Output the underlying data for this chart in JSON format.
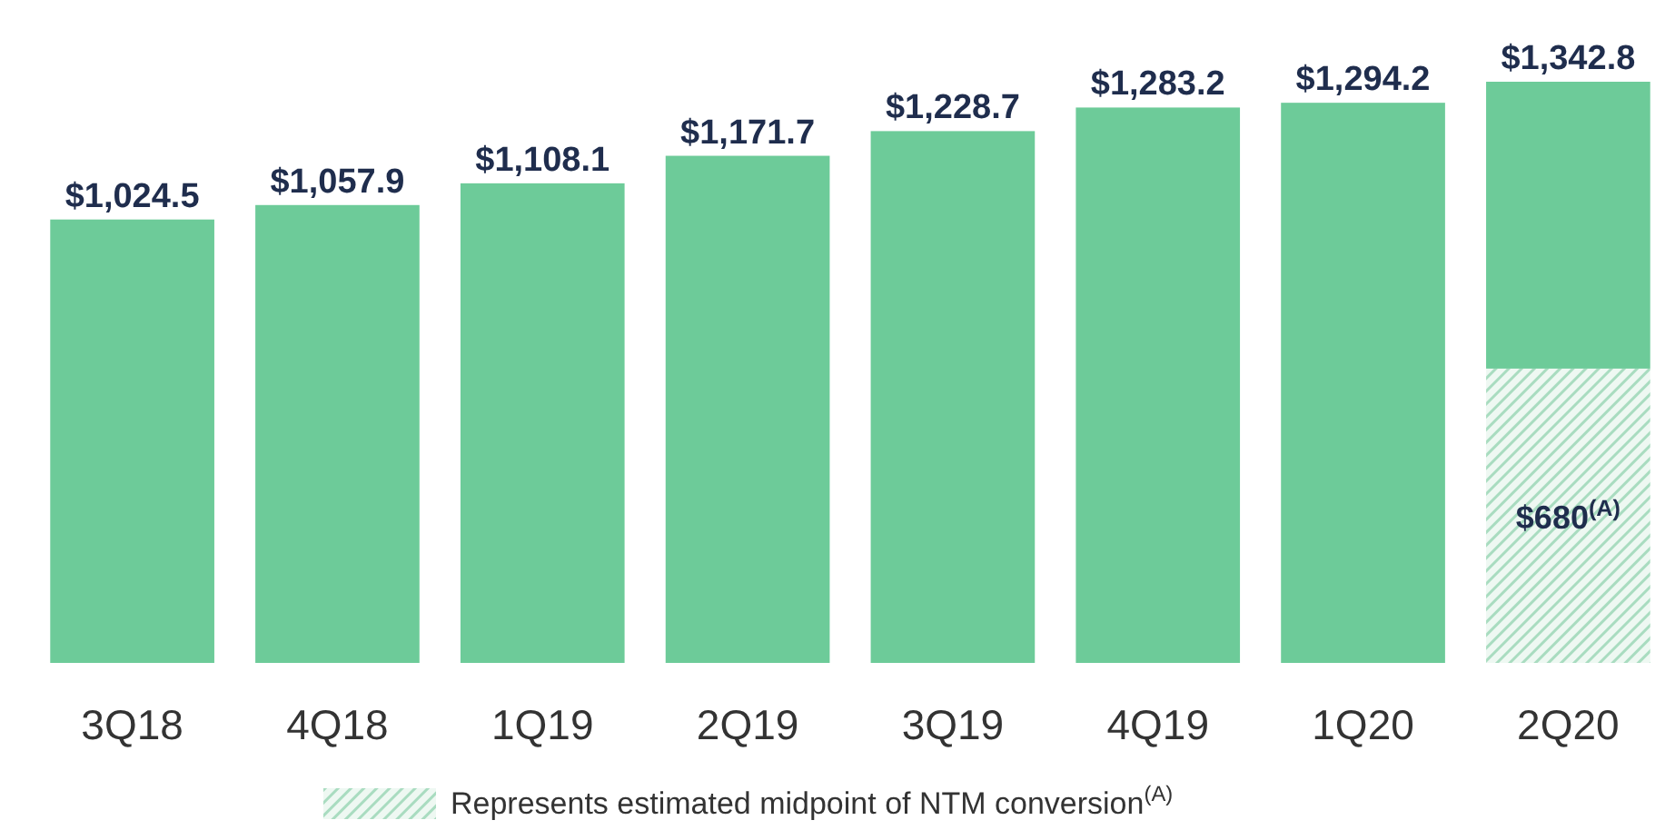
{
  "chart_data": {
    "type": "bar",
    "stacked": true,
    "categories": [
      "3Q18",
      "4Q18",
      "1Q19",
      "2Q19",
      "3Q19",
      "4Q19",
      "1Q20",
      "2Q20"
    ],
    "series": [
      {
        "name": "Represents estimated midpoint of NTM conversion$^{(A)}$",
        "color": "#a9dcc0",
        "values": [
          null,
          null,
          null,
          null,
          null,
          null,
          null,
          680
        ],
        "value_labels": [
          null,
          null,
          null,
          null,
          null,
          null,
          null,
          "$680$^{(A)}$"
        ]
      },
      {
        "color": "#6dcb99",
        "values": [
          1024.5,
          1057.9,
          1108.1,
          1171.7,
          1228.7,
          1283.2,
          1294.2,
          662.8
        ]
      }
    ],
    "totals": [
      "$1,024.5",
      "$1,057.9",
      "$1,108.1",
      "$1,171.7",
      "$1,228.7",
      "$1,283.2",
      "$1,294.2",
      "$1,342.8"
    ],
    "legend": "bottom"
  }
}
